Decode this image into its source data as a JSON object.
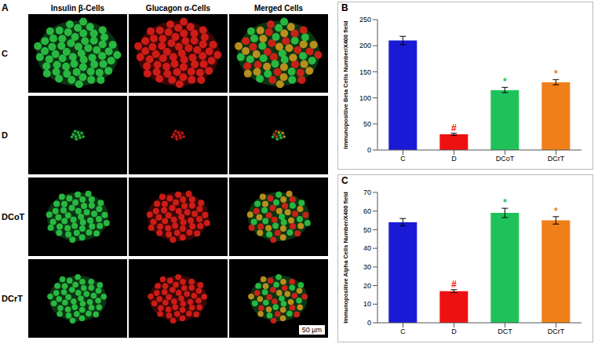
{
  "image_panel": {
    "panel": "A",
    "columns": [
      "Insulin β-Cells",
      "Glucagon α-Cells",
      "Merged Cells"
    ],
    "rows": [
      "C",
      "D",
      "DCoT",
      "DCrT"
    ],
    "scale_bar": "50 µm"
  },
  "chart_data": [
    {
      "panel": "B",
      "type": "bar",
      "ylabel": "Immunopositive Beta Cells Number/X400 field",
      "categories": [
        "C",
        "D",
        "DCoT",
        "DCrT"
      ],
      "values": [
        210,
        30,
        115,
        130
      ],
      "errors": [
        8,
        2,
        5,
        5
      ],
      "colors": [
        "#1a1ad6",
        "#ee1111",
        "#1fc25a",
        "#f07f1a"
      ],
      "annotations": [
        {
          "category": "D",
          "text": "#"
        },
        {
          "category": "DCoT",
          "text": "*"
        },
        {
          "category": "DCrT",
          "text": "*"
        }
      ],
      "ylim": [
        0,
        250
      ],
      "yticks": [
        0,
        50,
        100,
        150,
        200,
        250
      ]
    },
    {
      "panel": "C",
      "type": "bar",
      "ylabel": "Immunopositive Alpha Cells Number/X400 field",
      "categories": [
        "C",
        "D",
        "DCT",
        "DCrT"
      ],
      "values": [
        54,
        17,
        59,
        55
      ],
      "errors": [
        2,
        0.8,
        2.5,
        2
      ],
      "colors": [
        "#1a1ad6",
        "#ee1111",
        "#1fc25a",
        "#f07f1a"
      ],
      "annotations": [
        {
          "category": "D",
          "text": "#"
        },
        {
          "category": "DCT",
          "text": "*"
        },
        {
          "category": "DCrT",
          "text": "*"
        }
      ],
      "ylim": [
        0,
        70
      ],
      "yticks": [
        0,
        10,
        20,
        30,
        40,
        50,
        60,
        70
      ]
    }
  ]
}
